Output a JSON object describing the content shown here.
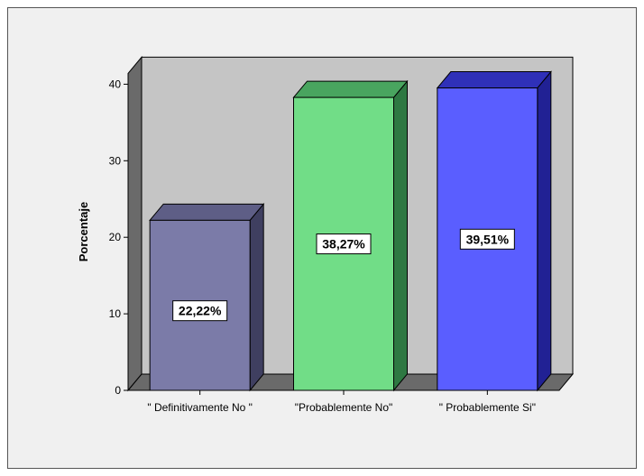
{
  "chart_data": {
    "type": "bar",
    "title": "",
    "xlabel": "",
    "ylabel": "Porcentaje",
    "ylim": [
      0,
      40
    ],
    "yticks": [
      0,
      10,
      20,
      30,
      40
    ],
    "categories": [
      "\" Definitivamente No \"",
      "\"Probablemente No\"",
      "\" Probablemente Si\""
    ],
    "values": [
      22.22,
      38.27,
      39.51
    ],
    "data_labels": [
      "22,22%",
      "38,27%",
      "39,51%"
    ],
    "colors": {
      "bar_front": [
        "#7b7ba8",
        "#71dd87",
        "#5a5eff"
      ],
      "bar_top": [
        "#5e5e86",
        "#49a55f",
        "#2f30b8"
      ],
      "bar_side": [
        "#3f3f60",
        "#2e7842",
        "#212194"
      ],
      "back_wall": "#c5c5c5",
      "floor": "#6a6a6a",
      "left_wall": "#6a6a6a",
      "frame_bg": "#f0f0f0"
    },
    "style": "3d"
  }
}
